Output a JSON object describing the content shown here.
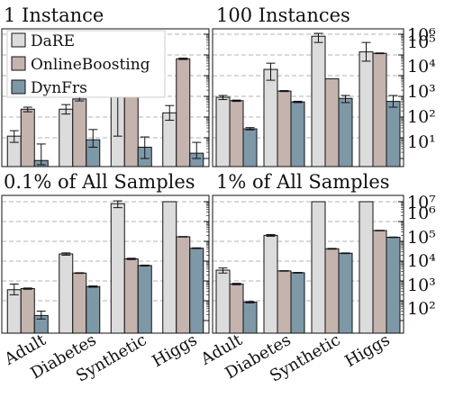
{
  "colors": {
    "series": [
      "#dcdcdc",
      "#c4b4ad",
      "#7d99a7"
    ],
    "grid": "#9a9a9a",
    "edge": "#111111"
  },
  "legend": [
    {
      "label": "DaRE"
    },
    {
      "label": "OnlineBoosting"
    },
    {
      "label": "DynFrs"
    }
  ],
  "axis": {
    "categories": [
      "Adult",
      "Diabetes",
      "Synthetic",
      "Higgs"
    ],
    "top_ticks": [
      "10¹",
      "10²",
      "10³",
      "10⁴",
      "10⁵",
      "10⁶"
    ],
    "bottom_ticks": [
      "10²",
      "10³",
      "10⁴",
      "10⁵",
      "10⁶",
      "10⁷"
    ]
  },
  "chart_data": [
    {
      "type": "bar",
      "title": "1 Instance",
      "scale": "log",
      "ylim": [
        1,
        1000000
      ],
      "categories": [
        "Adult",
        "Diabetes",
        "Synthetic",
        "Higgs"
      ],
      "series": [
        {
          "name": "DaRE",
          "values": [
            12,
            240,
            2500,
            160
          ],
          "err_low": [
            6,
            140,
            12,
            70
          ],
          "err_high": [
            22,
            400,
            85000,
            360
          ]
        },
        {
          "name": "OnlineBoosting",
          "values": [
            240,
            750,
            6000,
            65000
          ],
          "err_low": [
            180,
            600,
            6000,
            60000
          ],
          "err_high": [
            300,
            900,
            6000,
            70000
          ]
        },
        {
          "name": "DynFrs",
          "values": [
            0.8,
            8,
            3.5,
            1.8
          ],
          "err_low": [
            0.5,
            3.5,
            1,
            1
          ],
          "err_high": [
            5,
            25,
            11,
            6
          ]
        }
      ]
    },
    {
      "type": "bar",
      "title": "100 Instances",
      "scale": "log",
      "ylim": [
        1,
        1000000
      ],
      "categories": [
        "Adult",
        "Diabetes",
        "Synthetic",
        "Higgs"
      ],
      "series": [
        {
          "name": "DaRE",
          "values": [
            900,
            20000,
            800000,
            140000
          ],
          "err_low": [
            700,
            6000,
            400000,
            50000
          ],
          "err_high": [
            1100,
            40000,
            1100000,
            400000
          ]
        },
        {
          "name": "OnlineBoosting",
          "values": [
            620,
            1800,
            7000,
            120000
          ],
          "err_low": [
            570,
            1700,
            7000,
            115000
          ],
          "err_high": [
            660,
            1900,
            7000,
            125000
          ]
        },
        {
          "name": "DynFrs",
          "values": [
            27,
            540,
            800,
            570
          ],
          "err_low": [
            24,
            500,
            500,
            300
          ],
          "err_high": [
            31,
            580,
            1100,
            1100
          ]
        }
      ]
    },
    {
      "type": "bar",
      "title": "0.1% of All Samples",
      "scale": "log",
      "ylim": [
        10,
        10000000
      ],
      "categories": [
        "Adult",
        "Diabetes",
        "Synthetic",
        "Higgs"
      ],
      "series": [
        {
          "name": "DaRE",
          "values": [
            360,
            23000,
            8000000,
            10000000
          ],
          "err_low": [
            200,
            20000,
            5000000,
            10000000
          ],
          "err_high": [
            700,
            26000,
            11000000,
            10000000
          ]
        },
        {
          "name": "OnlineBoosting",
          "values": [
            410,
            2500,
            13000,
            170000
          ],
          "err_low": [
            380,
            2400,
            12000,
            165000
          ],
          "err_high": [
            440,
            2600,
            14000,
            175000
          ]
        },
        {
          "name": "DynFrs",
          "values": [
            18,
            520,
            6000,
            45000
          ],
          "err_low": [
            12,
            480,
            5700,
            43000
          ],
          "err_high": [
            30,
            560,
            6300,
            47000
          ]
        }
      ]
    },
    {
      "type": "bar",
      "title": "1% of All Samples",
      "scale": "log",
      "ylim": [
        10,
        10000000
      ],
      "categories": [
        "Adult",
        "Diabetes",
        "Synthetic",
        "Higgs"
      ],
      "series": [
        {
          "name": "DaRE",
          "values": [
            3500,
            200000,
            10000000,
            10000000
          ],
          "err_low": [
            2500,
            180000,
            10000000,
            10000000
          ],
          "err_high": [
            4500,
            220000,
            10000000,
            10000000
          ]
        },
        {
          "name": "OnlineBoosting",
          "values": [
            700,
            3200,
            42000,
            350000
          ],
          "err_low": [
            640,
            3100,
            40000,
            340000
          ],
          "err_high": [
            760,
            3300,
            44000,
            360000
          ]
        },
        {
          "name": "DynFrs",
          "values": [
            85,
            2600,
            25000,
            160000
          ],
          "err_low": [
            78,
            2500,
            24000,
            155000
          ],
          "err_high": [
            92,
            2700,
            26000,
            165000
          ]
        }
      ]
    }
  ]
}
